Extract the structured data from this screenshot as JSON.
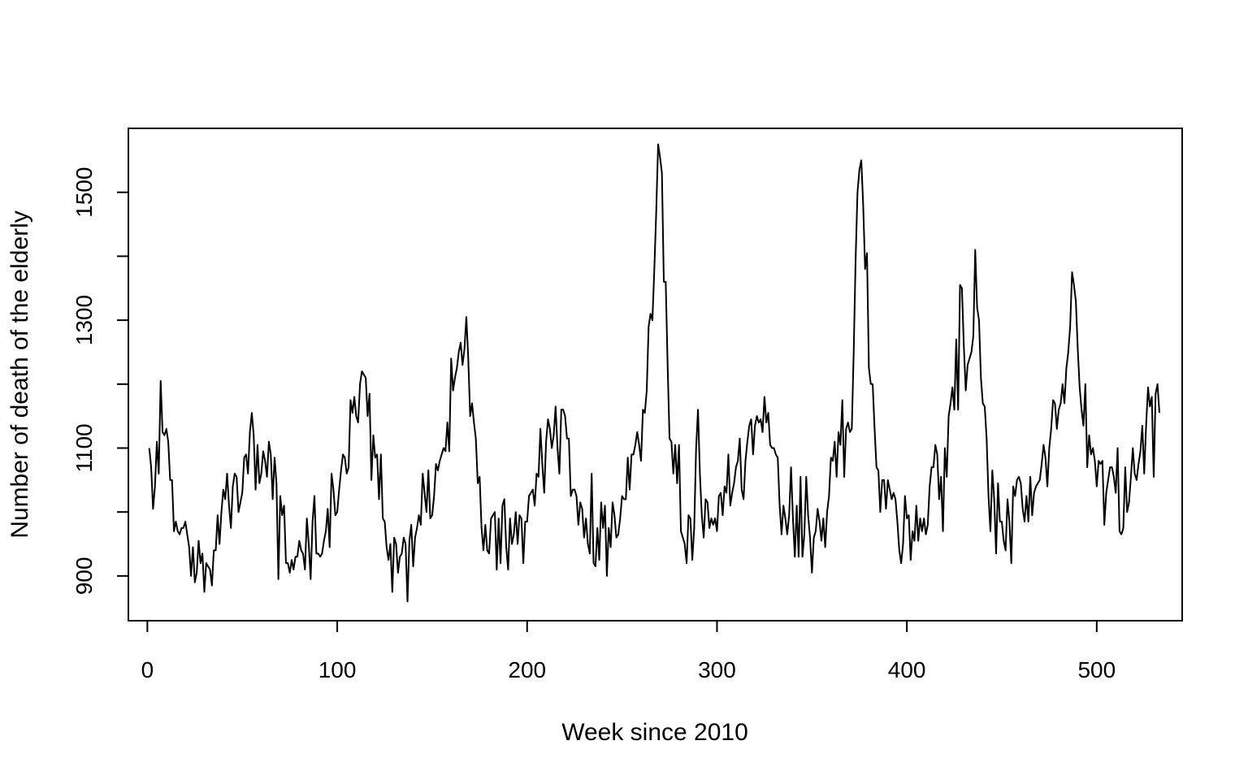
{
  "chart_data": {
    "type": "line",
    "title": "",
    "xlabel": "Week since 2010",
    "ylabel": "Number of death of the elderly",
    "xlim": [
      -10,
      545
    ],
    "ylim": [
      830,
      1600
    ],
    "xticks": [
      0,
      100,
      200,
      300,
      400,
      500
    ],
    "yticks": [
      900,
      1000,
      1100,
      1200,
      1300,
      1400,
      1500
    ],
    "ytick_labels": [
      "900",
      "",
      "1100",
      "",
      "1300",
      "",
      "1500"
    ],
    "grid": false,
    "legend": "none",
    "line_color": "#000000",
    "series": [
      {
        "name": "",
        "x_start": 1,
        "values": [
          1100,
          1070,
          1005,
          1040,
          1110,
          1060,
          1205,
          1125,
          1120,
          1130,
          1110,
          1050,
          1050,
          970,
          985,
          970,
          965,
          975,
          975,
          985,
          965,
          945,
          900,
          945,
          890,
          905,
          955,
          920,
          935,
          875,
          920,
          915,
          910,
          885,
          940,
          940,
          995,
          950,
          1000,
          1035,
          1020,
          1060,
          1010,
          975,
          1040,
          1060,
          1055,
          1000,
          1015,
          1030,
          1085,
          1090,
          1060,
          1125,
          1155,
          1120,
          1035,
          1105,
          1045,
          1060,
          1095,
          1080,
          1055,
          1110,
          1090,
          1020,
          1085,
          1045,
          895,
          1025,
          995,
          1010,
          920,
          920,
          905,
          925,
          910,
          930,
          930,
          955,
          940,
          935,
          910,
          990,
          950,
          895,
          985,
          1025,
          935,
          935,
          930,
          935,
          955,
          970,
          1005,
          945,
          1060,
          1035,
          995,
          1000,
          1035,
          1065,
          1090,
          1085,
          1060,
          1070,
          1175,
          1155,
          1180,
          1150,
          1140,
          1200,
          1220,
          1215,
          1210,
          1150,
          1185,
          1050,
          1120,
          1085,
          1090,
          1020,
          1090,
          990,
          985,
          945,
          925,
          950,
          875,
          960,
          950,
          905,
          930,
          935,
          960,
          950,
          860,
          955,
          980,
          915,
          960,
          975,
          995,
          980,
          1060,
          1030,
          1000,
          1065,
          990,
          995,
          1025,
          1075,
          1065,
          1080,
          1090,
          1100,
          1095,
          1140,
          1095,
          1240,
          1190,
          1210,
          1225,
          1250,
          1265,
          1230,
          1255,
          1305,
          1240,
          1150,
          1170,
          1140,
          1115,
          1045,
          1055,
          975,
          940,
          980,
          940,
          935,
          990,
          995,
          1000,
          910,
          990,
          920,
          1010,
          1020,
          945,
          910,
          990,
          950,
          965,
          1000,
          950,
          995,
          990,
          920,
          985,
          985,
          1025,
          1030,
          1035,
          1010,
          1060,
          1055,
          1130,
          1075,
          1030,
          1110,
          1145,
          1130,
          1100,
          1120,
          1165,
          1100,
          1060,
          1160,
          1160,
          1150,
          1115,
          1115,
          1025,
          1035,
          1035,
          1025,
          980,
          1015,
          1005,
          960,
          990,
          950,
          935,
          1060,
          920,
          915,
          975,
          925,
          1015,
          975,
          1010,
          900,
          975,
          945,
          1015,
          995,
          960,
          965,
          990,
          1025,
          1020,
          1020,
          1085,
          1035,
          1090,
          1090,
          1105,
          1125,
          1105,
          1080,
          1160,
          1155,
          1190,
          1290,
          1310,
          1300,
          1380,
          1470,
          1575,
          1555,
          1530,
          1360,
          1360,
          1230,
          1115,
          1110,
          1060,
          1105,
          1045,
          1105,
          970,
          960,
          950,
          920,
          995,
          990,
          925,
          975,
          1100,
          1160,
          1060,
          995,
          960,
          1020,
          1015,
          975,
          990,
          980,
          990,
          970,
          1025,
          1030,
          995,
          1040,
          1030,
          1090,
          1010,
          1030,
          1045,
          1070,
          1080,
          1115,
          1035,
          1020,
          1080,
          1110,
          1135,
          1145,
          1090,
          1135,
          1150,
          1140,
          1145,
          1125,
          1180,
          1140,
          1155,
          1105,
          1100,
          1100,
          1090,
          1085,
          1010,
          965,
          1010,
          990,
          965,
          995,
          1070,
          990,
          930,
          1010,
          930,
          1055,
          930,
          965,
          1055,
          995,
          960,
          905,
          960,
          970,
          1005,
          985,
          955,
          990,
          945,
          1000,
          1025,
          1085,
          1080,
          1110,
          1055,
          1125,
          1105,
          1175,
          1055,
          1130,
          1140,
          1125,
          1130,
          1250,
          1395,
          1500,
          1535,
          1550,
          1480,
          1380,
          1405,
          1225,
          1200,
          1200,
          1130,
          1070,
          1065,
          1000,
          1050,
          1050,
          1005,
          1050,
          1035,
          1020,
          1030,
          1020,
          985,
          940,
          920,
          950,
          1025,
          990,
          995,
          925,
          970,
          955,
          1010,
          955,
          990,
          970,
          990,
          965,
          980,
          1040,
          1070,
          1070,
          1105,
          1090,
          1020,
          1055,
          970,
          1100,
          1055,
          1150,
          1170,
          1195,
          1160,
          1270,
          1160,
          1355,
          1350,
          1260,
          1190,
          1230,
          1240,
          1250,
          1275,
          1410,
          1320,
          1300,
          1210,
          1170,
          1165,
          1115,
          1025,
          970,
          1065,
          1020,
          935,
          1045,
          985,
          985,
          955,
          940,
          1020,
          985,
          920,
          1040,
          1025,
          1050,
          1055,
          1045,
          1005,
          985,
          1025,
          985,
          1055,
          995,
          1030,
          1040,
          1045,
          1050,
          1075,
          1105,
          1085,
          1040,
          1100,
          1130,
          1175,
          1170,
          1130,
          1160,
          1170,
          1200,
          1170,
          1225,
          1250,
          1290,
          1375,
          1355,
          1330,
          1255,
          1195,
          1160,
          1135,
          1200,
          1070,
          1120,
          1090,
          1100,
          1080,
          1040,
          1080,
          1075,
          1080,
          980,
          1030,
          1050,
          1070,
          1070,
          1055,
          1030,
          1100,
          970,
          965,
          975,
          1070,
          1000,
          1015,
          1055,
          1100,
          1060,
          1050,
          1075,
          1095,
          1135,
          1060,
          1135,
          1195,
          1165,
          1180,
          1055,
          1185,
          1200,
          1155
        ]
      }
    ]
  }
}
